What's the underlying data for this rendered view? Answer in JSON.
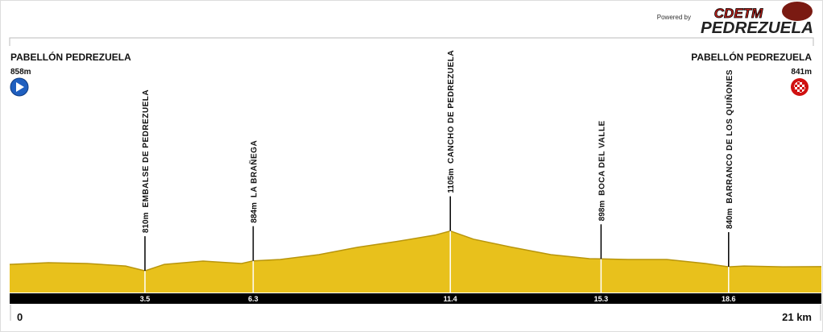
{
  "chart_data": {
    "type": "area",
    "powered_by": "Powered by",
    "logo": [
      "CDETM",
      "PEDREZUELA"
    ],
    "start": {
      "name": "PABELLÓN PEDREZUELA",
      "elevation": 858,
      "elevation_label": "858m"
    },
    "end": {
      "name": "PABELLÓN PEDREZUELA",
      "elevation": 841,
      "elevation_label": "841m"
    },
    "x": [
      0,
      1,
      2,
      3,
      3.5,
      4,
      5,
      6,
      6.3,
      7,
      8,
      9,
      10,
      11,
      11.4,
      12,
      13,
      14,
      15,
      15.3,
      16,
      17,
      18,
      18.6,
      19,
      20,
      21
    ],
    "values": [
      858,
      870,
      864,
      846,
      810,
      858,
      882,
      864,
      884,
      894,
      930,
      984,
      1026,
      1074,
      1105,
      1044,
      984,
      930,
      900,
      898,
      894,
      894,
      864,
      840,
      846,
      840,
      841
    ],
    "color": "#e8c11c",
    "waypoints": [
      {
        "km": 3.5,
        "elevation": 810,
        "elevation_label": "810m",
        "name": "EMBALSE DE PEDREZUELA"
      },
      {
        "km": 6.3,
        "elevation": 884,
        "elevation_label": "884m",
        "name": "LA BRAÑEGA"
      },
      {
        "km": 11.4,
        "elevation": 1105,
        "elevation_label": "1105m",
        "name": "CANCHO DE PEDREZUELA"
      },
      {
        "km": 15.3,
        "elevation": 898,
        "elevation_label": "898m",
        "name": "BOCA DEL VALLE"
      },
      {
        "km": 18.6,
        "elevation": 840,
        "elevation_label": "840m",
        "name": "BARRANCO DE LOS QUIÑONES"
      }
    ],
    "xlim": [
      0,
      21
    ],
    "xticks": [
      0,
      {
        "value": 21,
        "label": "21 km"
      }
    ],
    "ylim": [
      650,
      1150
    ]
  }
}
